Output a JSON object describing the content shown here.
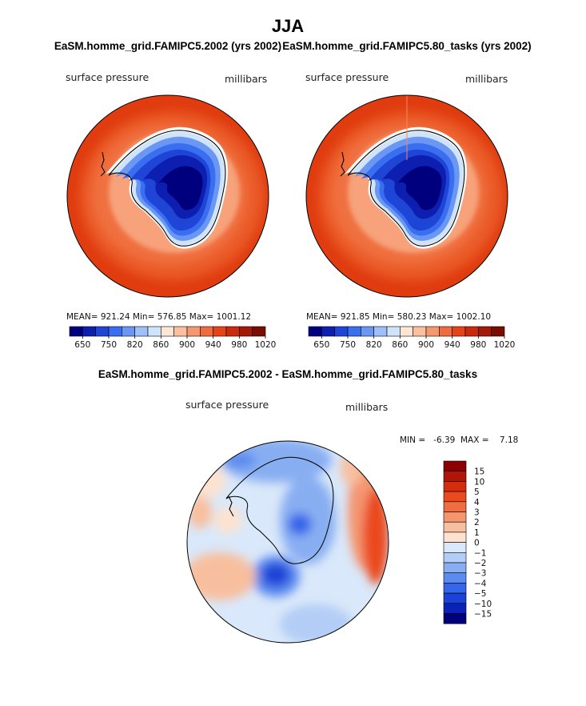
{
  "figure_title": "JJA",
  "chart_data": [
    {
      "type": "heatmap",
      "title": "EaSM.homme_grid.FAMIPC5.2002 (yrs 2002)",
      "variable": "surface pressure",
      "units": "millibars",
      "stats": "MEAN= 921.24   Min= 576.85   Max= 1001.12",
      "mean": 921.24,
      "min": 576.85,
      "max": 1001.12,
      "tick_labels": [
        "650",
        "750",
        "820",
        "860",
        "900",
        "940",
        "980",
        "1020"
      ],
      "color_levels": [
        "#00007f",
        "#0d1fb0",
        "#1f45d6",
        "#3a6ef0",
        "#6b97f4",
        "#9ebff7",
        "#cfe3fb",
        "#fde6d6",
        "#fbc0a0",
        "#f59870",
        "#ef6c40",
        "#e64417",
        "#cc2a0d",
        "#a31a05",
        "#7a0d02"
      ],
      "field_colors": {
        "ocean": "#e03c10",
        "ocean_high": "#ee6a36",
        "coast_low": "#f7a27a",
        "ice_edge": "#ffffff",
        "plateau": "#001a9a"
      }
    },
    {
      "type": "heatmap",
      "title": "EaSM.homme_grid.FAMIPC5.80_tasks (yrs 2002)",
      "variable": "surface pressure",
      "units": "millibars",
      "stats": "MEAN= 921.85   Min= 580.23   Max= 1002.10",
      "mean": 921.85,
      "min": 580.23,
      "max": 1002.1,
      "tick_labels": [
        "650",
        "750",
        "820",
        "860",
        "900",
        "940",
        "980",
        "1020"
      ],
      "color_levels": [
        "#00007f",
        "#0d1fb0",
        "#1f45d6",
        "#3a6ef0",
        "#6b97f4",
        "#9ebff7",
        "#cfe3fb",
        "#fde6d6",
        "#fbc0a0",
        "#f59870",
        "#ef6c40",
        "#e64417",
        "#cc2a0d",
        "#a31a05",
        "#7a0d02"
      ],
      "field_colors": {
        "ocean": "#e03c10",
        "ocean_high": "#ee6a36",
        "coast_low": "#f7a27a",
        "ice_edge": "#ffffff",
        "plateau": "#001a9a"
      }
    },
    {
      "type": "heatmap",
      "title": "EaSM.homme_grid.FAMIPC5.2002 - EaSM.homme_grid.FAMIPC5.80_tasks",
      "variable": "surface pressure",
      "units": "millibars",
      "stats": "MIN =   -6.39  MAX =    7.18",
      "min": -6.39,
      "max": 7.18,
      "legend_labels": [
        "15",
        "10",
        "5",
        "4",
        "3",
        "2",
        "1",
        "0",
        "−1",
        "−2",
        "−3",
        "−4",
        "−5",
        "−10",
        "−15"
      ],
      "legend_colors": [
        "#8b0000",
        "#b01508",
        "#d42c0d",
        "#ea4a1e",
        "#f06d42",
        "#f59570",
        "#f8bf9f",
        "#fde2cf",
        "#d9e8fa",
        "#b3cdf6",
        "#88aef2",
        "#5c8bef",
        "#3565ea",
        "#1b42d8",
        "#0a22b8",
        "#00007f"
      ]
    }
  ]
}
